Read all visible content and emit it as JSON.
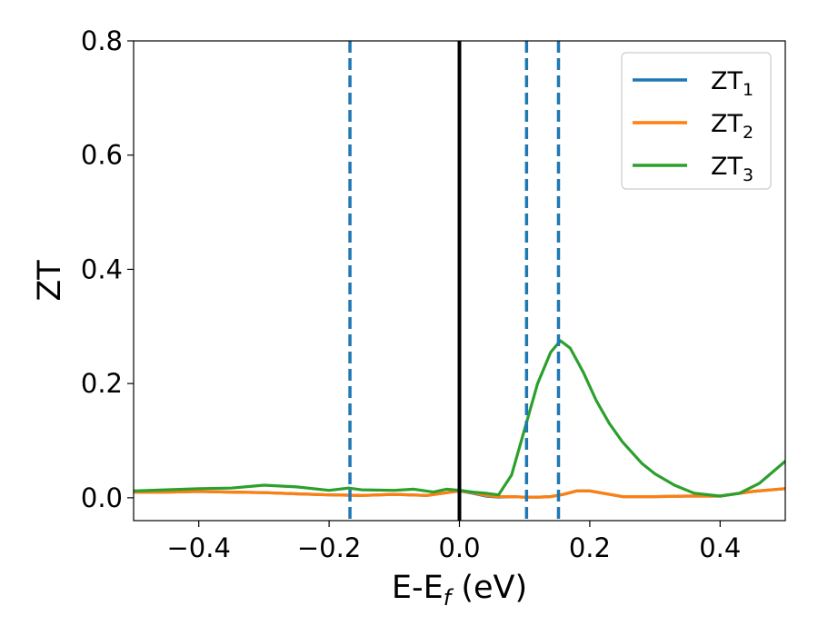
{
  "chart_data": {
    "type": "line",
    "xlabel_main": "E-E",
    "xlabel_sub": "f",
    "xlabel_unit": " (eV)",
    "ylabel": "ZT",
    "xlim": [
      -0.5,
      0.5
    ],
    "ylim": [
      -0.04,
      0.8
    ],
    "grid": false,
    "legend_position": "top-right",
    "x_ticks": [
      {
        "value": -0.4,
        "label": "−0.4"
      },
      {
        "value": -0.2,
        "label": "−0.2"
      },
      {
        "value": 0.0,
        "label": "0.0"
      },
      {
        "value": 0.2,
        "label": "0.2"
      },
      {
        "value": 0.4,
        "label": "0.4"
      }
    ],
    "y_ticks": [
      {
        "value": 0.0,
        "label": "0.0"
      },
      {
        "value": 0.2,
        "label": "0.2"
      },
      {
        "value": 0.4,
        "label": "0.4"
      },
      {
        "value": 0.6,
        "label": "0.6"
      },
      {
        "value": 0.8,
        "label": "0.8"
      }
    ],
    "vertical_lines": [
      {
        "x": -0.168,
        "style": "dashed",
        "color": "#1f77b4"
      },
      {
        "x": 0.0,
        "style": "solid",
        "color": "#000000"
      },
      {
        "x": 0.103,
        "style": "dashed",
        "color": "#1f77b4"
      },
      {
        "x": 0.152,
        "style": "dashed",
        "color": "#1f77b4"
      }
    ],
    "series": [
      {
        "name": "ZT",
        "subscript": "1",
        "color": "#1f77b4",
        "x": [
          -0.5,
          -0.45,
          -0.4,
          -0.35,
          -0.3,
          -0.25,
          -0.2,
          -0.15,
          -0.1,
          -0.05,
          0.0,
          0.02,
          0.04,
          0.06,
          0.08,
          0.1,
          0.12,
          0.14,
          0.16,
          0.18,
          0.2,
          0.22,
          0.25,
          0.3,
          0.35,
          0.4,
          0.45,
          0.5
        ],
        "y": [
          0.01,
          0.01,
          0.011,
          0.01,
          0.009,
          0.007,
          0.005,
          0.004,
          0.006,
          0.004,
          0.012,
          0.008,
          0.003,
          0.001,
          0.002,
          0.001,
          0.001,
          0.002,
          0.006,
          0.012,
          0.012,
          0.008,
          0.002,
          0.002,
          0.003,
          0.003,
          0.011,
          0.016
        ]
      },
      {
        "name": "ZT",
        "subscript": "2",
        "color": "#ff7f0e",
        "x": [
          -0.5,
          -0.45,
          -0.4,
          -0.35,
          -0.3,
          -0.25,
          -0.2,
          -0.15,
          -0.1,
          -0.05,
          0.0,
          0.02,
          0.04,
          0.06,
          0.08,
          0.1,
          0.12,
          0.14,
          0.16,
          0.18,
          0.2,
          0.22,
          0.25,
          0.3,
          0.35,
          0.4,
          0.45,
          0.5
        ],
        "y": [
          0.01,
          0.01,
          0.011,
          0.01,
          0.009,
          0.007,
          0.005,
          0.004,
          0.006,
          0.004,
          0.012,
          0.009,
          0.004,
          0.002,
          0.002,
          0.001,
          0.001,
          0.002,
          0.006,
          0.012,
          0.012,
          0.008,
          0.002,
          0.002,
          0.003,
          0.003,
          0.011,
          0.016
        ]
      },
      {
        "name": "ZT",
        "subscript": "3",
        "color": "#2ca02c",
        "x": [
          -0.5,
          -0.45,
          -0.4,
          -0.35,
          -0.3,
          -0.25,
          -0.2,
          -0.17,
          -0.15,
          -0.1,
          -0.07,
          -0.04,
          -0.02,
          0.0,
          0.02,
          0.04,
          0.06,
          0.08,
          0.1,
          0.12,
          0.14,
          0.155,
          0.17,
          0.19,
          0.21,
          0.23,
          0.25,
          0.28,
          0.3,
          0.33,
          0.36,
          0.4,
          0.43,
          0.46,
          0.5
        ],
        "y": [
          0.012,
          0.014,
          0.016,
          0.017,
          0.022,
          0.019,
          0.013,
          0.017,
          0.014,
          0.013,
          0.015,
          0.01,
          0.015,
          0.013,
          0.01,
          0.008,
          0.005,
          0.04,
          0.12,
          0.2,
          0.255,
          0.275,
          0.262,
          0.22,
          0.17,
          0.13,
          0.098,
          0.06,
          0.042,
          0.022,
          0.008,
          0.003,
          0.008,
          0.025,
          0.064
        ]
      }
    ]
  }
}
